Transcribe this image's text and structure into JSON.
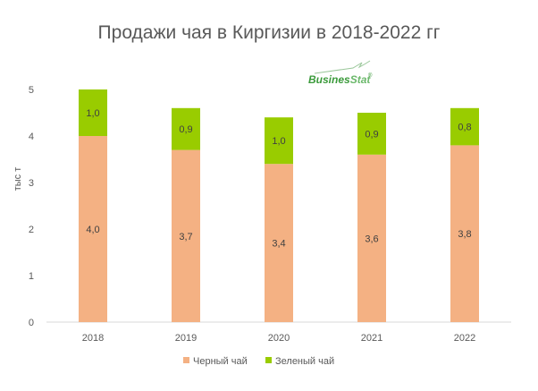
{
  "chart_data": {
    "type": "bar",
    "stacked": true,
    "title": "Продажи чая в Киргизии в 2018-2022 гг",
    "ylabel": "тыс т",
    "xlabel": "",
    "categories": [
      "2018",
      "2019",
      "2020",
      "2021",
      "2022"
    ],
    "series": [
      {
        "name": "Черный чай",
        "values": [
          4.0,
          3.7,
          3.4,
          3.6,
          3.8
        ],
        "labels": [
          "4,0",
          "3,7",
          "3,4",
          "3,6",
          "3,8"
        ],
        "color": "#F4B183"
      },
      {
        "name": "Зеленый чай",
        "values": [
          1.0,
          0.9,
          1.0,
          0.9,
          0.8
        ],
        "labels": [
          "1,0",
          "0,9",
          "1,0",
          "0,9",
          "0,8"
        ],
        "color": "#99CC00"
      }
    ],
    "ylim": [
      0,
      5
    ],
    "yticks": [
      "0",
      "1",
      "2",
      "3",
      "4",
      "5"
    ],
    "grid": false,
    "legend_position": "bottom"
  },
  "logo": {
    "text_part1": "Busines",
    "text_part2": "Stat",
    "mark": "®",
    "color": "#3A9A3A"
  }
}
